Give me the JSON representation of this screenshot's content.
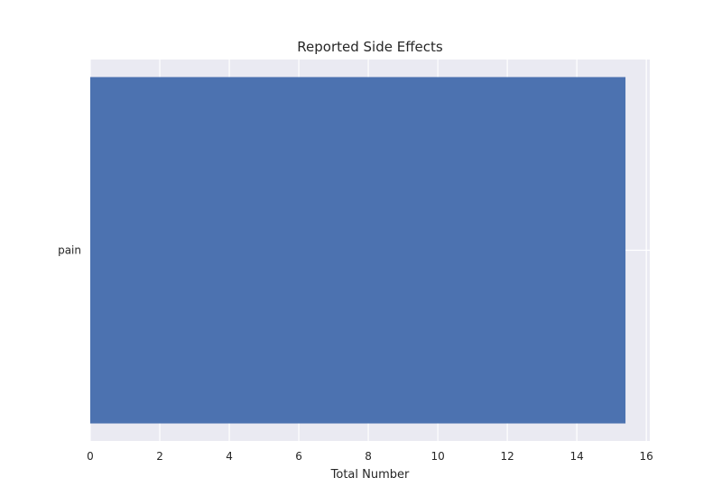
{
  "chart_data": {
    "type": "bar",
    "orientation": "horizontal",
    "title": "Reported Side Effects",
    "xlabel": "Total Number",
    "ylabel": "",
    "categories": [
      "pain"
    ],
    "values": [
      15.4
    ],
    "xlim": [
      0,
      16.1
    ],
    "xticks": [
      0,
      2,
      4,
      6,
      8,
      10,
      12,
      14,
      16
    ],
    "grid": true,
    "colors": {
      "bar": "#4c72b0",
      "plot_background": "#eaeaf2",
      "grid": "#ffffff"
    }
  }
}
